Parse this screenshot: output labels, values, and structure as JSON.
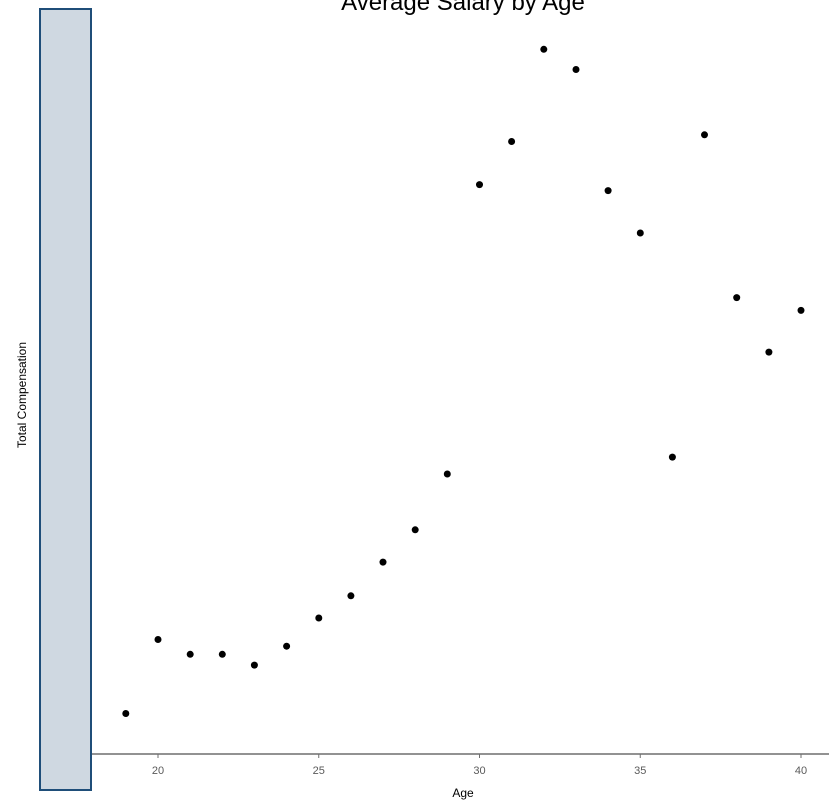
{
  "chart_data": {
    "type": "scatter",
    "title": "Average Salary by Age",
    "xlabel": "Age",
    "ylabel": "Total Compensation",
    "xlim": [
      18,
      41
    ],
    "x_ticks": [
      20,
      25,
      30,
      35,
      40
    ],
    "grid": false,
    "point_color": "#000000",
    "axis_color": "#6e6e6e",
    "y_labels_obscured": true,
    "y_mask_fill": "#cfd8e1",
    "y_mask_border": "#1f4e79",
    "points": [
      {
        "x": 19,
        "y": 0.02
      },
      {
        "x": 20,
        "y": 0.13
      },
      {
        "x": 21,
        "y": 0.108
      },
      {
        "x": 22,
        "y": 0.108
      },
      {
        "x": 23,
        "y": 0.092
      },
      {
        "x": 24,
        "y": 0.12
      },
      {
        "x": 25,
        "y": 0.162
      },
      {
        "x": 26,
        "y": 0.195
      },
      {
        "x": 27,
        "y": 0.245
      },
      {
        "x": 28,
        "y": 0.293
      },
      {
        "x": 29,
        "y": 0.376
      },
      {
        "x": 30,
        "y": 0.806
      },
      {
        "x": 31,
        "y": 0.87
      },
      {
        "x": 32,
        "y": 1.007
      },
      {
        "x": 33,
        "y": 0.977
      },
      {
        "x": 34,
        "y": 0.797
      },
      {
        "x": 35,
        "y": 0.734
      },
      {
        "x": 36,
        "y": 0.401
      },
      {
        "x": 37,
        "y": 0.88
      },
      {
        "x": 38,
        "y": 0.638
      },
      {
        "x": 39,
        "y": 0.557
      },
      {
        "x": 40,
        "y": 0.619
      }
    ]
  }
}
